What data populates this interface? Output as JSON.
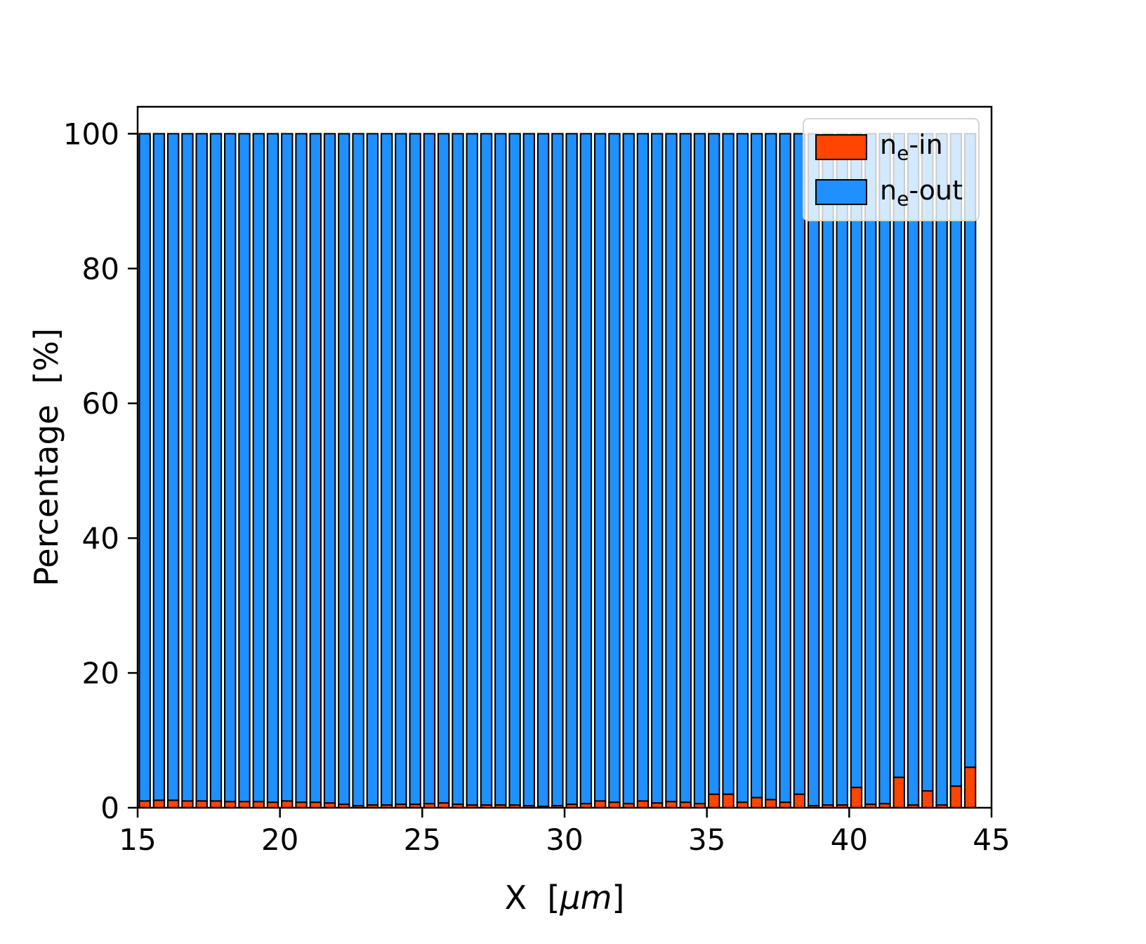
{
  "figure": {
    "background": "#ffffff"
  },
  "chart_data": {
    "type": "bar",
    "stacked": true,
    "title": "",
    "xlabel_parts": [
      "X  [",
      "μm",
      "]"
    ],
    "ylabel": "Percentage  [%]",
    "xlim": [
      15,
      45
    ],
    "ylim": [
      0,
      104
    ],
    "x_ticks": [
      15,
      20,
      25,
      30,
      35,
      40,
      45
    ],
    "y_ticks": [
      0,
      20,
      40,
      60,
      80,
      100
    ],
    "grid": false,
    "bar_width": 0.38,
    "bar_edge_color": "#000000",
    "x": [
      15.25,
      15.75,
      16.25,
      16.75,
      17.25,
      17.75,
      18.25,
      18.75,
      19.25,
      19.75,
      20.25,
      20.75,
      21.25,
      21.75,
      22.25,
      22.75,
      23.25,
      23.75,
      24.25,
      24.75,
      25.25,
      25.75,
      26.25,
      26.75,
      27.25,
      27.75,
      28.25,
      28.75,
      29.25,
      29.75,
      30.25,
      30.75,
      31.25,
      31.75,
      32.25,
      32.75,
      33.25,
      33.75,
      34.25,
      34.75,
      35.25,
      35.75,
      36.25,
      36.75,
      37.25,
      37.75,
      38.25,
      38.75,
      39.25,
      39.75,
      40.25,
      40.75,
      41.25,
      41.75,
      42.25,
      42.75,
      43.25,
      43.75,
      44.25
    ],
    "series": [
      {
        "name": "ne-in",
        "color": "#ff4500",
        "values": [
          1.0,
          1.1,
          1.1,
          1.0,
          1.0,
          1.0,
          0.9,
          0.9,
          0.9,
          0.8,
          1.0,
          0.8,
          0.8,
          0.7,
          0.5,
          0.3,
          0.4,
          0.4,
          0.5,
          0.5,
          0.6,
          0.7,
          0.5,
          0.4,
          0.4,
          0.4,
          0.4,
          0.3,
          0.2,
          0.3,
          0.5,
          0.6,
          1.0,
          0.8,
          0.6,
          1.0,
          0.7,
          0.9,
          0.8,
          0.6,
          2.0,
          2.0,
          0.8,
          1.5,
          1.2,
          0.8,
          2.0,
          0.3,
          0.4,
          0.4,
          3.0,
          0.5,
          0.6,
          4.5,
          0.4,
          2.5,
          0.4,
          3.2,
          6.0
        ]
      },
      {
        "name": "ne-out",
        "color": "#1e90ff",
        "values": [
          99.0,
          98.9,
          98.9,
          99.0,
          99.0,
          99.0,
          99.1,
          99.1,
          99.1,
          99.2,
          99.0,
          99.2,
          99.2,
          99.3,
          99.5,
          99.7,
          99.6,
          99.6,
          99.5,
          99.5,
          99.4,
          99.3,
          99.5,
          99.6,
          99.6,
          99.6,
          99.6,
          99.7,
          99.8,
          99.7,
          99.5,
          99.4,
          99.0,
          99.2,
          99.4,
          99.0,
          99.3,
          99.1,
          99.2,
          99.4,
          98.0,
          98.0,
          99.2,
          98.5,
          98.8,
          99.2,
          98.0,
          99.7,
          99.6,
          99.6,
          97.0,
          99.5,
          99.4,
          95.5,
          99.6,
          97.5,
          99.6,
          96.8,
          94.0
        ]
      }
    ],
    "legend": {
      "position": "upper right",
      "entries": [
        {
          "prefix": "n",
          "sub": "e",
          "suffix": "-in",
          "color": "#ff4500"
        },
        {
          "prefix": "n",
          "sub": "e",
          "suffix": "-out",
          "color": "#1e90ff"
        }
      ]
    }
  }
}
